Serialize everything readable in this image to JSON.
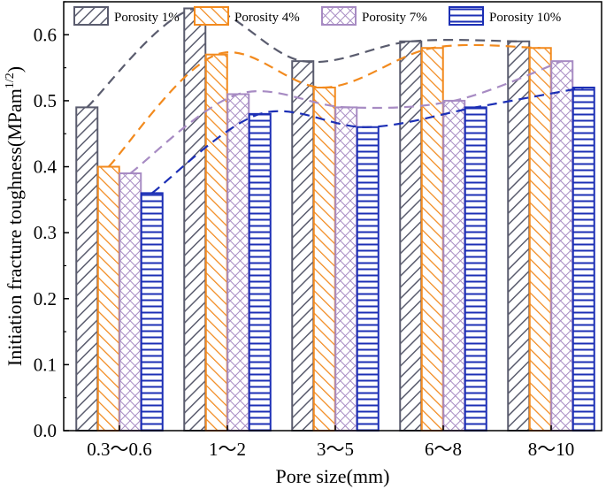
{
  "chart_data": {
    "type": "bar",
    "title": "",
    "xlabel": "Pore size(mm)",
    "ylabel": "Initiation fracture toughness(MPam",
    "ylabel_sup": "1/2",
    "ylabel_close": ")",
    "ylim": [
      0,
      0.65
    ],
    "yticks": [
      0.0,
      0.1,
      0.2,
      0.3,
      0.4,
      0.5,
      0.6
    ],
    "ytick_labels": [
      "0.0",
      "0.1",
      "0.2",
      "0.3",
      "0.4",
      "0.5",
      "0.6"
    ],
    "categories": [
      "0.3～0.6",
      "1～2",
      "3～5",
      "6～8",
      "8～10"
    ],
    "legend_position": "top",
    "grid": false,
    "series": [
      {
        "name": "Porosity 1%",
        "values": [
          0.49,
          0.64,
          0.56,
          0.59,
          0.59
        ],
        "color": "#5a5c6e",
        "pattern": "diag-right",
        "trend": "dashed-smooth"
      },
      {
        "name": "Porosity 4%",
        "values": [
          0.4,
          0.57,
          0.52,
          0.58,
          0.58
        ],
        "color": "#f28a1e",
        "pattern": "diag-left",
        "trend": "dashed-smooth"
      },
      {
        "name": "Porosity 7%",
        "values": [
          0.39,
          0.51,
          0.49,
          0.5,
          0.56
        ],
        "color": "#a78bc3",
        "pattern": "crosshatch",
        "trend": "dashed-smooth"
      },
      {
        "name": "Porosity 10%",
        "values": [
          0.36,
          0.48,
          0.46,
          0.49,
          0.52
        ],
        "color": "#1c2fb5",
        "pattern": "horizontal",
        "trend": "dashed-smooth"
      }
    ]
  }
}
